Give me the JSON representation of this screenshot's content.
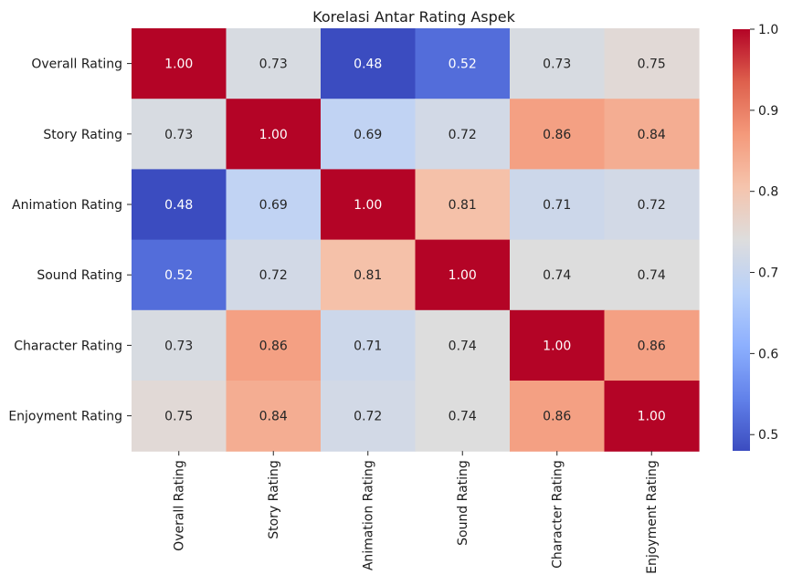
{
  "chart_data": {
    "type": "heatmap",
    "title": "Korelasi Antar Rating Aspek",
    "xlabel": "",
    "ylabel": "",
    "row_labels": [
      "Overall Rating",
      "Story Rating",
      "Animation Rating",
      "Sound Rating",
      "Character Rating",
      "Enjoyment Rating"
    ],
    "col_labels": [
      "Overall Rating",
      "Story Rating",
      "Animation Rating",
      "Sound Rating",
      "Character Rating",
      "Enjoyment Rating"
    ],
    "values": [
      [
        1.0,
        0.73,
        0.48,
        0.52,
        0.73,
        0.75
      ],
      [
        0.73,
        1.0,
        0.69,
        0.72,
        0.86,
        0.84
      ],
      [
        0.48,
        0.69,
        1.0,
        0.81,
        0.71,
        0.72
      ],
      [
        0.52,
        0.72,
        0.81,
        1.0,
        0.74,
        0.74
      ],
      [
        0.73,
        0.86,
        0.71,
        0.74,
        1.0,
        0.86
      ],
      [
        0.75,
        0.84,
        0.72,
        0.74,
        0.86,
        1.0
      ]
    ],
    "annotation_format": "0.00",
    "colormap": "coolwarm",
    "colorbar": {
      "range": [
        0.48,
        1.0
      ],
      "ticks": [
        0.5,
        0.6,
        0.7,
        0.8,
        0.9,
        1.0
      ],
      "tick_labels": [
        "0.5",
        "0.6",
        "0.7",
        "0.8",
        "0.9",
        "1.0"
      ]
    }
  }
}
